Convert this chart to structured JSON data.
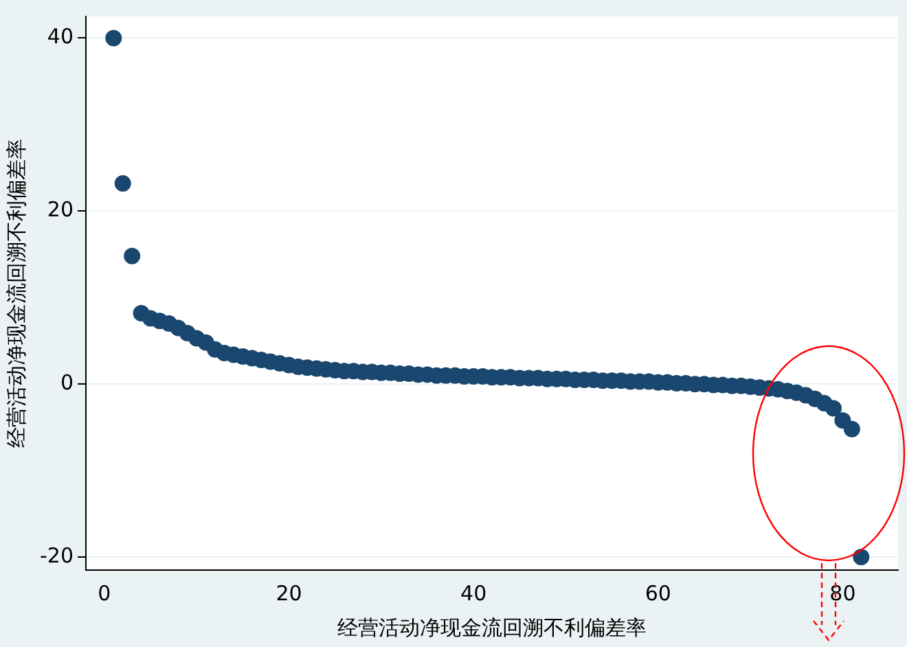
{
  "chart_data": {
    "type": "scatter",
    "xlabel": "经营活动净现金流回溯不利偏差率",
    "ylabel": "经营活动净现金流回溯不利偏差率",
    "x": [
      1,
      2,
      3,
      4,
      5,
      6,
      7,
      8,
      9,
      10,
      11,
      12,
      13,
      14,
      15,
      16,
      17,
      18,
      19,
      20,
      21,
      22,
      23,
      24,
      25,
      26,
      27,
      28,
      29,
      30,
      31,
      32,
      33,
      34,
      35,
      36,
      37,
      38,
      39,
      40,
      41,
      42,
      43,
      44,
      45,
      46,
      47,
      48,
      49,
      50,
      51,
      52,
      53,
      54,
      55,
      56,
      57,
      58,
      59,
      60,
      61,
      62,
      63,
      64,
      65,
      66,
      67,
      68,
      69,
      70,
      71,
      72,
      73,
      74,
      75,
      76,
      77,
      78,
      79,
      80,
      81,
      82
    ],
    "series": [
      {
        "color": "#1a476f",
        "values": [
          40,
          23.2,
          14.8,
          8.2,
          7.6,
          7.3,
          7.0,
          6.5,
          5.9,
          5.3,
          4.8,
          4.0,
          3.6,
          3.4,
          3.2,
          3.0,
          2.8,
          2.6,
          2.4,
          2.2,
          2.0,
          1.9,
          1.8,
          1.7,
          1.6,
          1.5,
          1.5,
          1.4,
          1.4,
          1.3,
          1.3,
          1.2,
          1.2,
          1.1,
          1.1,
          1.0,
          1.0,
          1.0,
          0.9,
          0.9,
          0.9,
          0.8,
          0.8,
          0.8,
          0.7,
          0.7,
          0.7,
          0.6,
          0.6,
          0.6,
          0.5,
          0.5,
          0.5,
          0.4,
          0.4,
          0.4,
          0.3,
          0.3,
          0.3,
          0.2,
          0.2,
          0.1,
          0.1,
          0.0,
          0.0,
          -0.1,
          -0.1,
          -0.2,
          -0.2,
          -0.3,
          -0.4,
          -0.5,
          -0.6,
          -0.8,
          -1.0,
          -1.3,
          -1.7,
          -2.2,
          -2.8,
          -4.2,
          -5.2,
          -20
        ]
      }
    ],
    "xlim": [
      -2,
      86
    ],
    "xticks": [
      0,
      20,
      40,
      60,
      80
    ],
    "ylim": [
      -21.5,
      42.5
    ],
    "yticks": [
      -20,
      0,
      20,
      40
    ],
    "grid": "y",
    "marker": "circle",
    "legend": false
  }
}
